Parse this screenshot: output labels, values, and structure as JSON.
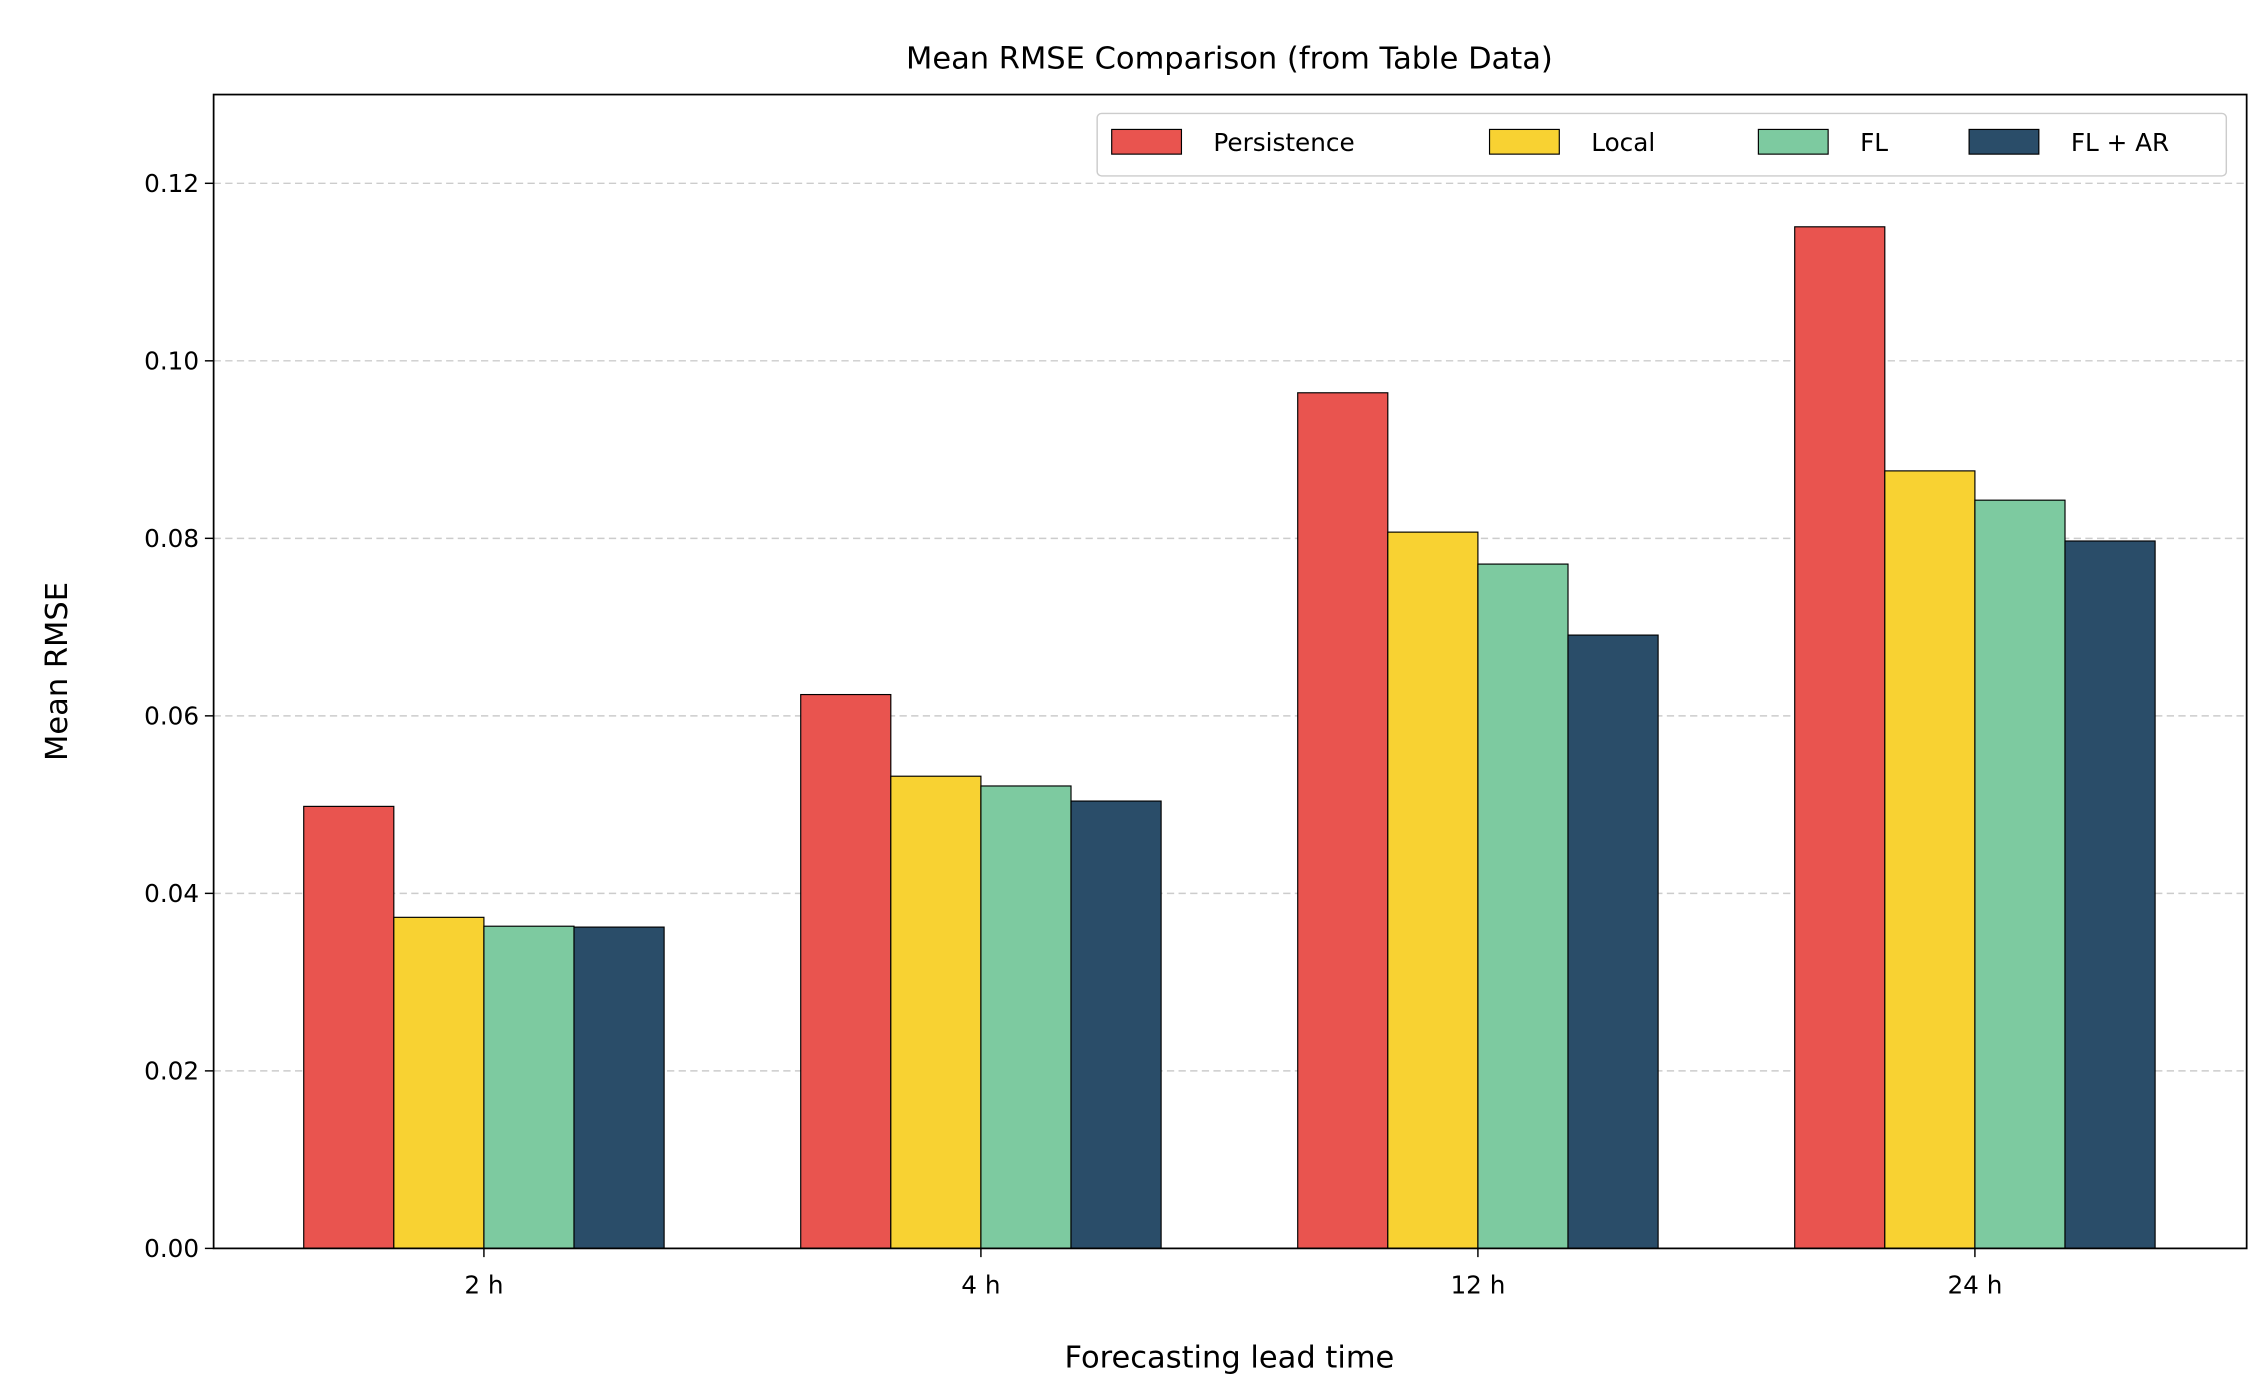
{
  "chart_data": {
    "type": "bar",
    "title": "Mean RMSE Comparison (from Table Data)",
    "xlabel": "Forecasting lead time",
    "ylabel": "Mean RMSE",
    "categories": [
      "2 h",
      "4 h",
      "12 h",
      "24 h"
    ],
    "ylim": [
      0,
      0.13
    ],
    "yticks": [
      "0.00",
      "0.02",
      "0.04",
      "0.06",
      "0.08",
      "0.10",
      "0.12"
    ],
    "grid": "y-dashed",
    "legend_placement": "top-right",
    "series": [
      {
        "name": "Persistence",
        "color": "#e9544f",
        "values": [
          0.0498,
          0.0624,
          0.0964,
          0.1151
        ]
      },
      {
        "name": "Local",
        "color": "#f8d232",
        "values": [
          0.0373,
          0.0532,
          0.0807,
          0.0876
        ]
      },
      {
        "name": "FL",
        "color": "#7dcaa0",
        "values": [
          0.0363,
          0.0521,
          0.0771,
          0.0843
        ]
      },
      {
        "name": "FL + AR",
        "color": "#2a4d69",
        "values": [
          0.0362,
          0.0504,
          0.0691,
          0.0797
        ]
      }
    ]
  }
}
